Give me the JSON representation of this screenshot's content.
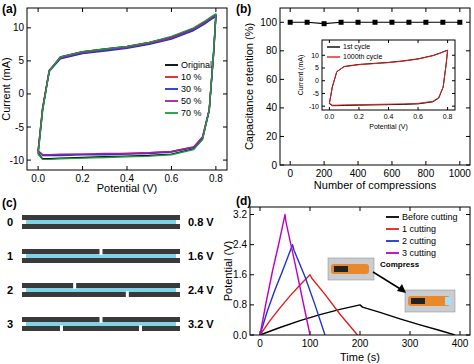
{
  "chart_data": [
    {
      "type": "line",
      "title": "(a)",
      "x_label": "Potential (V)",
      "y_label": "Current (mA)",
      "xlim": [
        -0.05,
        0.85
      ],
      "ylim": [
        -11.5,
        13
      ],
      "xticks": [
        {
          "value": 0,
          "label": "0.0"
        },
        0.2,
        0.4,
        0.6,
        0.8
      ],
      "yticks": [
        -10,
        -5,
        0,
        5,
        10
      ],
      "legend": "center-right",
      "x": [
        0,
        0.02,
        0.05,
        0.1,
        0.2,
        0.3,
        0.4,
        0.5,
        0.6,
        0.7,
        0.75,
        0.78,
        0.8,
        0.79,
        0.77,
        0.74,
        0.7,
        0.6,
        0.5,
        0.4,
        0.3,
        0.2,
        0.1,
        0.05,
        0.02,
        0
      ],
      "series": [
        {
          "name": "Original",
          "color": "#000000",
          "values": [
            -9.0,
            -2.5,
            3.5,
            5.6,
            6.4,
            6.8,
            7.2,
            7.8,
            8.6,
            9.9,
            10.9,
            11.6,
            12.0,
            6.5,
            -2.5,
            -6.8,
            -8.3,
            -9.1,
            -9.3,
            -9.4,
            -9.5,
            -9.6,
            -9.7,
            -9.8,
            -9.8,
            -9.0
          ]
        },
        {
          "name": "10 %",
          "color": "#e0201b",
          "values": [
            -8.6,
            -2.2,
            3.5,
            5.4,
            6.2,
            6.6,
            7.0,
            7.6,
            8.4,
            9.7,
            10.7,
            11.4,
            11.8,
            6.2,
            -2.4,
            -6.5,
            -8.0,
            -8.7,
            -8.9,
            -9.0,
            -9.1,
            -9.1,
            -9.2,
            -9.2,
            -9.2,
            -8.6
          ]
        },
        {
          "name": "30 %",
          "color": "#2233c8",
          "values": [
            -8.7,
            -2.3,
            3.4,
            5.3,
            6.1,
            6.5,
            6.9,
            7.5,
            8.3,
            9.6,
            10.6,
            11.3,
            11.7,
            6.1,
            -2.5,
            -6.6,
            -8.1,
            -8.8,
            -9.0,
            -9.1,
            -9.2,
            -9.2,
            -9.3,
            -9.3,
            -9.3,
            -8.7
          ]
        },
        {
          "name": "50 %",
          "color": "#a020a0",
          "values": [
            -8.6,
            -2.1,
            3.6,
            5.5,
            6.3,
            6.7,
            7.1,
            7.7,
            8.5,
            9.8,
            10.8,
            11.5,
            11.9,
            6.3,
            -2.3,
            -6.5,
            -8.0,
            -8.7,
            -8.9,
            -9.0,
            -9.0,
            -9.1,
            -9.1,
            -9.2,
            -9.2,
            -8.6
          ]
        },
        {
          "name": "70 %",
          "color": "#1f9a3a",
          "values": [
            -9.1,
            -2.6,
            3.4,
            5.6,
            6.4,
            6.8,
            7.2,
            7.8,
            8.7,
            10.0,
            11.0,
            11.7,
            12.1,
            6.6,
            -2.4,
            -6.9,
            -8.4,
            -9.2,
            -9.4,
            -9.5,
            -9.6,
            -9.7,
            -9.8,
            -9.9,
            -9.9,
            -9.1
          ]
        }
      ]
    },
    {
      "type": "line",
      "title": "(b)",
      "x_label": "Number of compressions",
      "y_label": "Capacitance retention (%)",
      "xlim": [
        -60,
        1060
      ],
      "ylim": [
        0,
        110
      ],
      "xticks": [
        0,
        200,
        400,
        600,
        800,
        1000
      ],
      "yticks": [
        0,
        20,
        40,
        60,
        80,
        100
      ],
      "x": [
        0,
        100,
        200,
        300,
        400,
        500,
        600,
        700,
        800,
        900,
        1000
      ],
      "series": [
        {
          "color": "#000000",
          "marker": "square",
          "values": [
            100,
            100,
            99,
            100,
            100,
            100,
            100,
            100,
            100,
            100,
            100
          ]
        }
      ]
    },
    {
      "type": "line",
      "x_label": "Potential (V)",
      "y_label": "Current (mA)",
      "xlim": [
        -0.05,
        0.85
      ],
      "ylim": [
        -11.5,
        16
      ],
      "xticks": [
        {
          "value": 0,
          "label": "0.0"
        },
        0.2,
        0.4,
        0.6,
        0.8
      ],
      "yticks": [
        -10,
        -5,
        0,
        5,
        10
      ],
      "legend": "top-left",
      "x": [
        0,
        0.02,
        0.05,
        0.1,
        0.2,
        0.3,
        0.4,
        0.5,
        0.6,
        0.7,
        0.75,
        0.78,
        0.8,
        0.79,
        0.77,
        0.74,
        0.7,
        0.6,
        0.5,
        0.4,
        0.3,
        0.2,
        0.1,
        0.05,
        0.02,
        0
      ],
      "series": [
        {
          "name": "1st cycle",
          "color": "#000000",
          "values": [
            -9.0,
            -2.5,
            3.5,
            5.6,
            6.4,
            6.8,
            7.2,
            7.8,
            8.6,
            9.9,
            10.9,
            11.6,
            12.0,
            6.5,
            -2.5,
            -6.8,
            -8.3,
            -9.1,
            -9.3,
            -9.4,
            -9.5,
            -9.6,
            -9.7,
            -9.8,
            -9.8,
            -9.0
          ]
        },
        {
          "name": "1000th cycle",
          "color": "#e0201b",
          "values": [
            -8.8,
            -2.3,
            3.6,
            5.5,
            6.3,
            6.7,
            7.1,
            7.7,
            8.5,
            9.8,
            10.8,
            11.5,
            11.9,
            6.4,
            -2.4,
            -6.6,
            -8.1,
            -8.9,
            -9.1,
            -9.2,
            -9.3,
            -9.4,
            -9.5,
            -9.6,
            -9.6,
            -8.8
          ]
        }
      ]
    },
    {
      "type": "line",
      "title": "(d)",
      "x_label": "Time (s)",
      "y_label": "Potential (V)",
      "xlim": [
        -20,
        420
      ],
      "ylim": [
        0,
        3.4
      ],
      "xticks": [
        0,
        100,
        200,
        300,
        400
      ],
      "yticks": [
        {
          "value": 0,
          "label": "0.0"
        },
        0.8,
        1.6,
        2.4,
        3.2
      ],
      "legend": "top-right",
      "annotations": [
        "Compress"
      ],
      "series": [
        {
          "name": "Before cutting",
          "color": "#000000",
          "x": [
            0,
            40,
            80,
            120,
            160,
            200,
            205,
            240,
            280,
            320,
            360,
            390
          ],
          "values": [
            0,
            0.2,
            0.38,
            0.54,
            0.68,
            0.8,
            0.74,
            0.6,
            0.43,
            0.27,
            0.12,
            0
          ]
        },
        {
          "name": "1 cutting",
          "color": "#e0201b",
          "x": [
            0,
            20,
            40,
            60,
            80,
            100,
            104,
            130,
            160,
            195
          ],
          "values": [
            0,
            0.38,
            0.72,
            1.04,
            1.33,
            1.6,
            1.5,
            1.08,
            0.55,
            0
          ]
        },
        {
          "name": "2 cutting",
          "color": "#2233c8",
          "x": [
            0,
            15,
            30,
            45,
            65,
            68,
            90,
            110,
            130
          ],
          "values": [
            0,
            0.65,
            1.2,
            1.7,
            2.4,
            2.25,
            1.55,
            0.8,
            0
          ]
        },
        {
          "name": "3 cutting",
          "color": "#c000c0",
          "x": [
            0,
            12,
            25,
            38,
            50,
            52,
            70,
            85,
            100
          ],
          "values": [
            0,
            0.85,
            1.7,
            2.45,
            3.2,
            3.0,
            1.9,
            0.95,
            0
          ]
        }
      ]
    }
  ],
  "diagram": {
    "title": "(c)",
    "rows": [
      {
        "label": "0",
        "voltage": "0.8 V"
      },
      {
        "label": "1",
        "voltage": "1.6 V"
      },
      {
        "label": "2",
        "voltage": "2.4 V"
      },
      {
        "label": "3",
        "voltage": "3.2 V"
      }
    ]
  }
}
